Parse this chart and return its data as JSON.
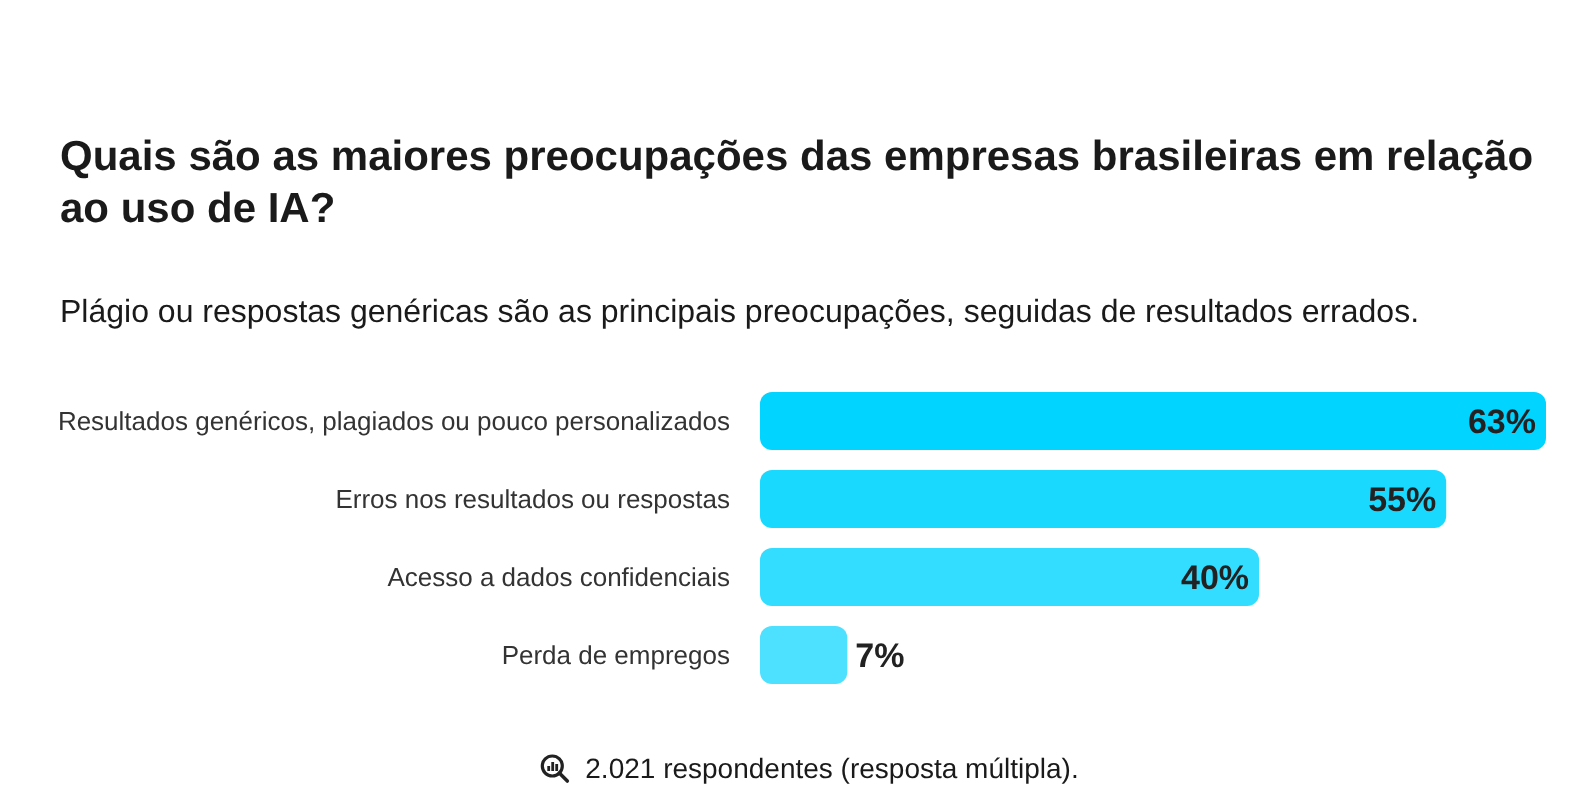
{
  "chart_data": {
    "type": "bar",
    "orientation": "horizontal",
    "title": "Quais são as maiores preocupações das empresas brasileiras em relação ao uso de IA?",
    "subtitle": "Plágio ou respostas genéricas são as principais preocupações, seguidas de resultados errados.",
    "categories": [
      "Resultados genéricos, plagiados ou pouco personalizados",
      "Erros nos resultados ou respostas",
      "Acesso a dados confidenciais",
      "Perda de empregos"
    ],
    "values": [
      63,
      55,
      40,
      7
    ],
    "colors": [
      "#00d4ff",
      "#1ad9ff",
      "#33ddff",
      "#4de0ff"
    ],
    "value_labels": [
      "63%",
      "55%",
      "40%",
      "7%"
    ],
    "annotations": [
      "2.021 respondentes (resposta múltipla)."
    ]
  }
}
